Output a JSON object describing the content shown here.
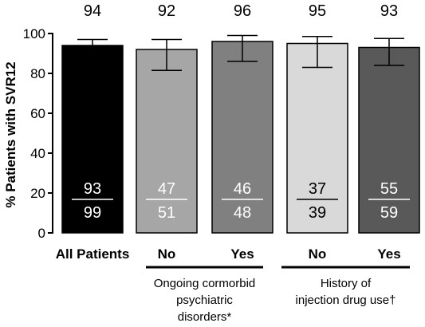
{
  "chart_data": {
    "type": "bar",
    "ylabel": "% Patients with SVR12",
    "ylim": [
      0,
      100
    ],
    "yticks": [
      "0",
      "20",
      "40",
      "60",
      "80",
      "100"
    ],
    "grid": false,
    "categories": [
      "All Patients",
      "No",
      "Yes",
      "No",
      "Yes"
    ],
    "values": [
      94,
      92,
      96,
      95,
      93
    ],
    "value_labels": [
      "94",
      "92",
      "96",
      "95",
      "93"
    ],
    "error_low": [
      87.5,
      81.5,
      86,
      83,
      84
    ],
    "error_high": [
      97,
      97,
      99,
      98.5,
      97.5
    ],
    "numerators": [
      "93",
      "47",
      "46",
      "37",
      "55"
    ],
    "denominators": [
      "99",
      "51",
      "48",
      "39",
      "59"
    ],
    "colors": [
      "#000000",
      "#a6a6a6",
      "#808080",
      "#d9d9d9",
      "#595959"
    ],
    "fraction_colors": [
      "#ffffff",
      "#ffffff",
      "#ffffff",
      "#000000",
      "#ffffff"
    ],
    "groups": [
      {
        "lines": [
          "Ongoing cormorbid",
          "psychiatric",
          "disorders*"
        ]
      },
      {
        "lines": [
          "History of",
          "injection drug use†"
        ]
      }
    ]
  }
}
